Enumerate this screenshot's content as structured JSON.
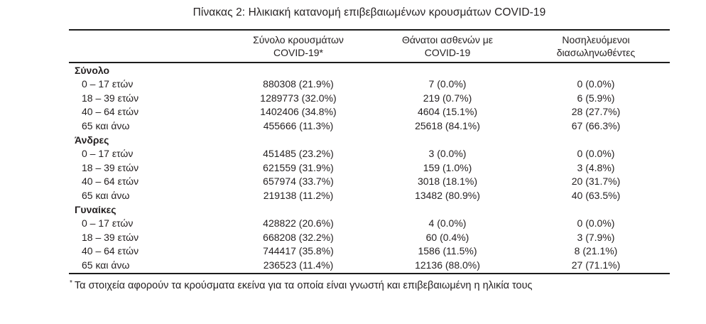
{
  "page": {
    "title": "Πίνακας 2: Ηλικιακή κατανομή επιβεβαιωμένων κρουσμάτων COVID-19"
  },
  "colors": {
    "text": "#231f20",
    "border": "#1c1c1c",
    "background": "#ffffff"
  },
  "table": {
    "columns": [
      {
        "label": ""
      },
      {
        "label": "Σύνολο κρουσμάτων\nCOVID-19*"
      },
      {
        "label": "Θάνατοι ασθενών με\nCOVID-19"
      },
      {
        "label": "Νοσηλευόμενοι\nδιασωληνωθέντες"
      }
    ],
    "sections": [
      {
        "label": "Σύνολο",
        "rows": [
          {
            "age": "0 – 17 ετών",
            "cases": "880308 (21.9%)",
            "deaths": "7 (0.0%)",
            "intubated": "0 (0.0%)"
          },
          {
            "age": "18 – 39 ετών",
            "cases": "1289773 (32.0%)",
            "deaths": "219 (0.7%)",
            "intubated": "6 (5.9%)"
          },
          {
            "age": "40 – 64 ετών",
            "cases": "1402406 (34.8%)",
            "deaths": "4604 (15.1%)",
            "intubated": "28 (27.7%)"
          },
          {
            "age": "65 και άνω",
            "cases": "455666 (11.3%)",
            "deaths": "25618 (84.1%)",
            "intubated": "67 (66.3%)"
          }
        ]
      },
      {
        "label": "Άνδρες",
        "rows": [
          {
            "age": "0 – 17 ετών",
            "cases": "451485 (23.2%)",
            "deaths": "3 (0.0%)",
            "intubated": "0 (0.0%)"
          },
          {
            "age": "18 – 39 ετών",
            "cases": "621559 (31.9%)",
            "deaths": "159 (1.0%)",
            "intubated": "3 (4.8%)"
          },
          {
            "age": "40 – 64 ετών",
            "cases": "657974 (33.7%)",
            "deaths": "3018 (18.1%)",
            "intubated": "20 (31.7%)"
          },
          {
            "age": "65 και άνω",
            "cases": "219138 (11.2%)",
            "deaths": "13482 (80.9%)",
            "intubated": "40 (63.5%)"
          }
        ]
      },
      {
        "label": "Γυναίκες",
        "rows": [
          {
            "age": "0 – 17 ετών",
            "cases": "428822 (20.6%)",
            "deaths": "4 (0.0%)",
            "intubated": "0 (0.0%)"
          },
          {
            "age": "18 – 39 ετών",
            "cases": "668208 (32.2%)",
            "deaths": "60 (0.4%)",
            "intubated": "3 (7.9%)"
          },
          {
            "age": "40 – 64 ετών",
            "cases": "744417 (35.8%)",
            "deaths": "1586 (11.5%)",
            "intubated": "8 (21.1%)"
          },
          {
            "age": "65 και άνω",
            "cases": "236523 (11.4%)",
            "deaths": "12136 (88.0%)",
            "intubated": "27 (71.1%)"
          }
        ]
      }
    ]
  },
  "footnote": {
    "marker": "*",
    "text": "Τα στοιχεία αφορούν τα κρούσματα εκείνα για τα οποία είναι γνωστή και επιβεβαιωμένη η ηλικία τους"
  }
}
